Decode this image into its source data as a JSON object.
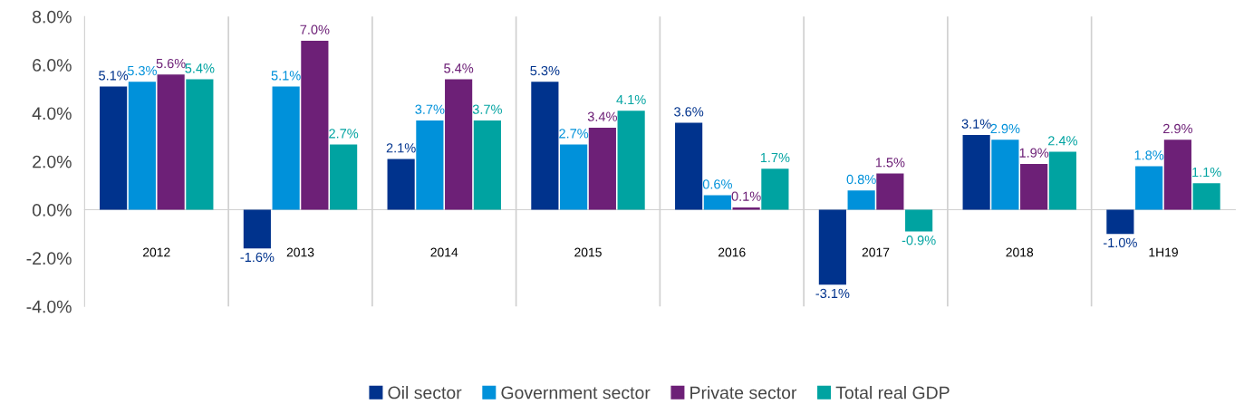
{
  "chart_data": {
    "type": "bar",
    "categories": [
      "2012",
      "2013",
      "2014",
      "2015",
      "2016",
      "2017",
      "2018",
      "1H19"
    ],
    "series": [
      {
        "name": "Oil sector",
        "color": "#00338d",
        "values": [
          5.1,
          -1.6,
          2.1,
          5.3,
          3.6,
          -3.1,
          3.1,
          -1.0
        ],
        "value_labels": [
          "5.1%",
          "-1.6%",
          "2.1%",
          "5.3%",
          "3.6%",
          "-3.1%",
          "3.1%",
          "-1.0%"
        ]
      },
      {
        "name": "Government sector",
        "color": "#0091da",
        "values": [
          5.3,
          5.1,
          3.7,
          2.7,
          0.6,
          0.8,
          2.9,
          1.8
        ],
        "value_labels": [
          "5.3%",
          "5.1%",
          "3.7%",
          "2.7%",
          "0.6%",
          "0.8%",
          "2.9%",
          "1.8%"
        ]
      },
      {
        "name": "Private sector",
        "color": "#6d2077",
        "values": [
          5.6,
          7.0,
          5.4,
          3.4,
          0.1,
          1.5,
          1.9,
          2.9
        ],
        "value_labels": [
          "5.6%",
          "7.0%",
          "5.4%",
          "3.4%",
          "0.1%",
          "1.5%",
          "1.9%",
          "2.9%"
        ]
      },
      {
        "name": "Total real GDP",
        "color": "#00a3a1",
        "values": [
          5.4,
          2.7,
          3.7,
          4.1,
          1.7,
          -0.9,
          2.4,
          1.1
        ],
        "value_labels": [
          "5.4%",
          "2.7%",
          "3.7%",
          "4.1%",
          "1.7%",
          "-0.9%",
          "2.4%",
          "1.1%"
        ]
      }
    ],
    "ylim": [
      -4,
      8
    ],
    "yticks": [
      {
        "value": -4,
        "label": "-4.0%"
      },
      {
        "value": -2,
        "label": "-2.0%"
      },
      {
        "value": 0,
        "label": "0.0%"
      },
      {
        "value": 2,
        "label": "2.0%"
      },
      {
        "value": 4,
        "label": "4.0%"
      },
      {
        "value": 6,
        "label": "6.0%"
      },
      {
        "value": 8,
        "label": "8.0%"
      }
    ],
    "grid": "x",
    "legend": "bottom"
  }
}
